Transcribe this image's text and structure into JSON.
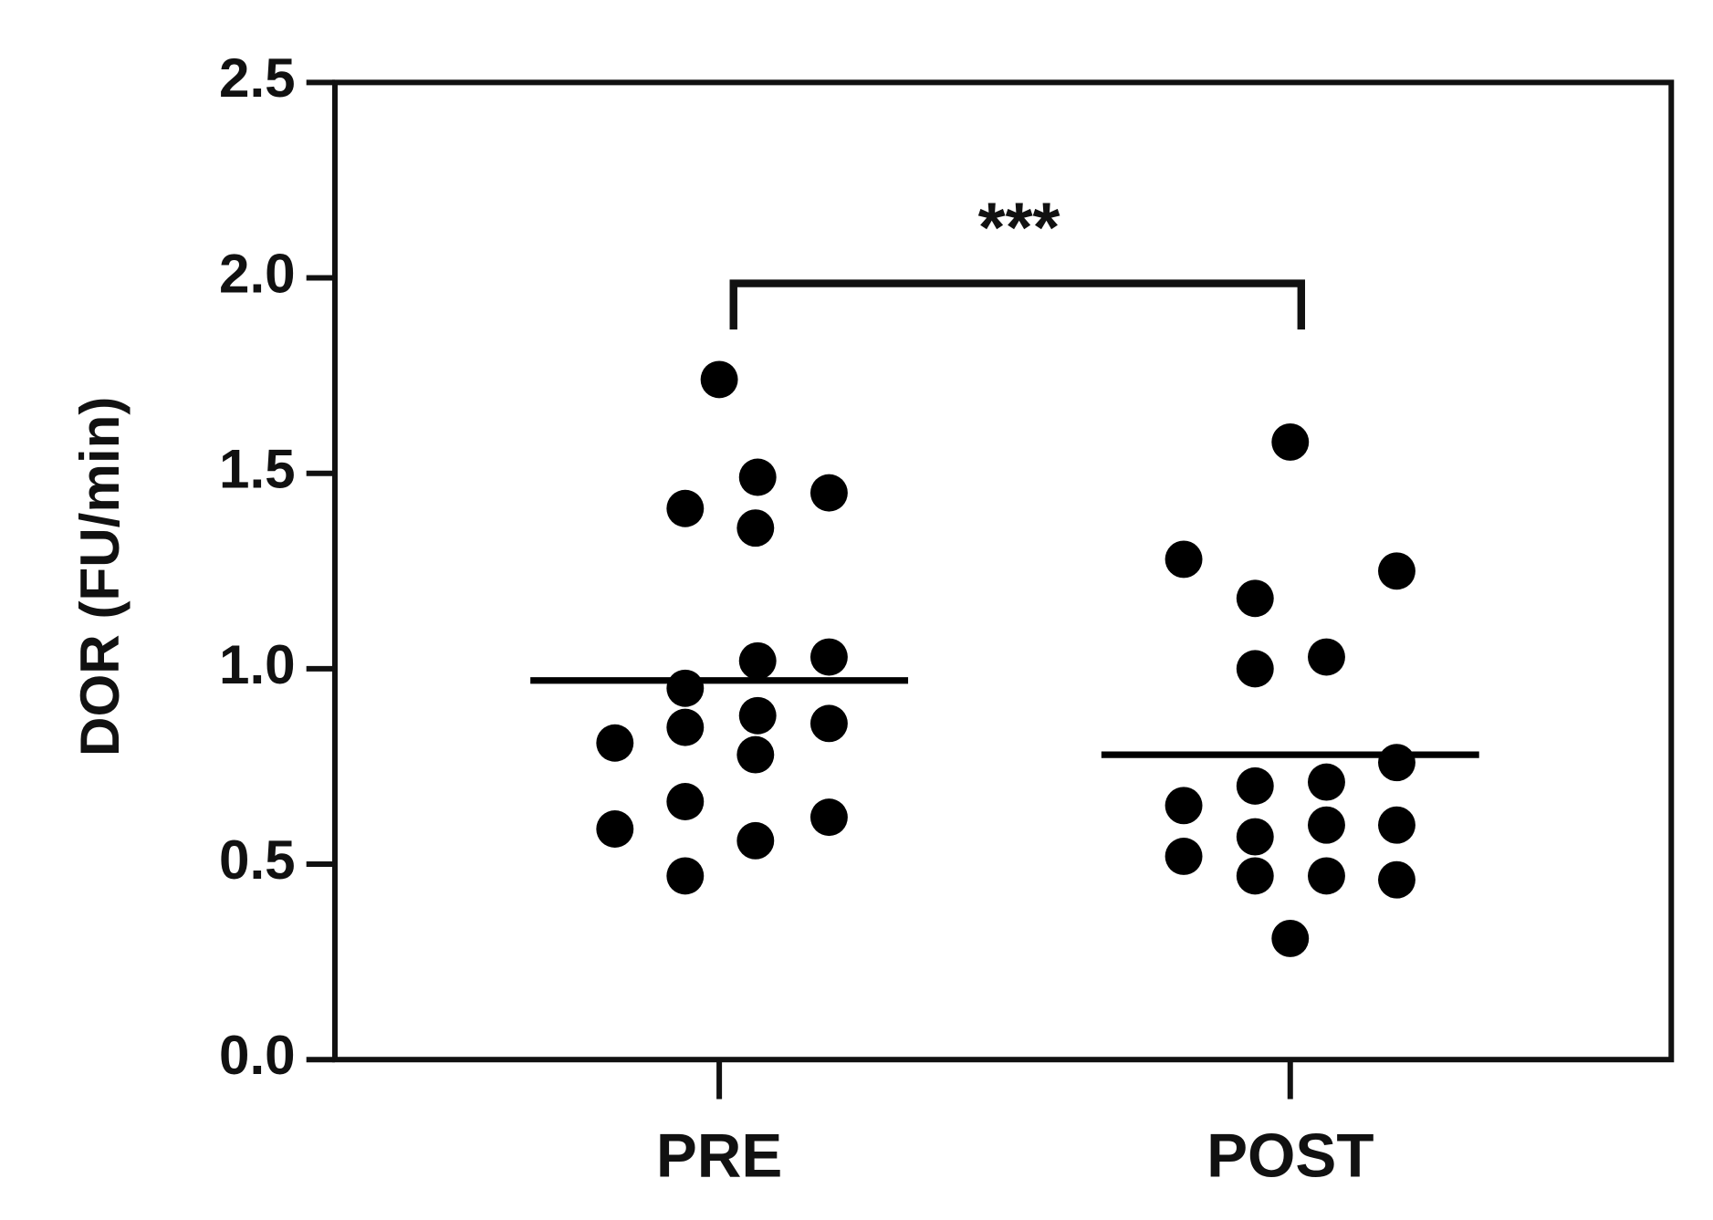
{
  "chart_data": {
    "type": "strip",
    "ylabel": "DOR (FU/min)",
    "categories": [
      "PRE",
      "POST"
    ],
    "series": [
      {
        "color": "#000000",
        "mean": 0.97,
        "values": [
          1.74,
          1.49,
          1.45,
          1.41,
          1.36,
          1.02,
          1.03,
          0.95,
          0.88,
          0.86,
          0.85,
          0.81,
          0.78,
          0.66,
          0.59,
          0.62,
          0.56,
          0.47
        ]
      },
      {
        "color": "#000000",
        "mean": 0.78,
        "values": [
          1.58,
          1.28,
          1.25,
          1.18,
          1.03,
          1.0,
          0.76,
          0.7,
          0.71,
          0.65,
          0.57,
          0.6,
          0.6,
          0.52,
          0.47,
          0.47,
          0.46,
          0.31
        ]
      }
    ],
    "annotation": "***",
    "ylim": [
      0,
      2.5
    ],
    "yticks": [
      {
        "value": 0,
        "label": "0.0"
      },
      {
        "value": 0.5,
        "label": "0.5"
      },
      {
        "value": 1,
        "label": "1.0"
      },
      {
        "value": 1.5,
        "label": "1.5"
      },
      {
        "value": 2,
        "label": "2.0"
      },
      {
        "value": 2.5,
        "label": "2.5"
      }
    ]
  }
}
